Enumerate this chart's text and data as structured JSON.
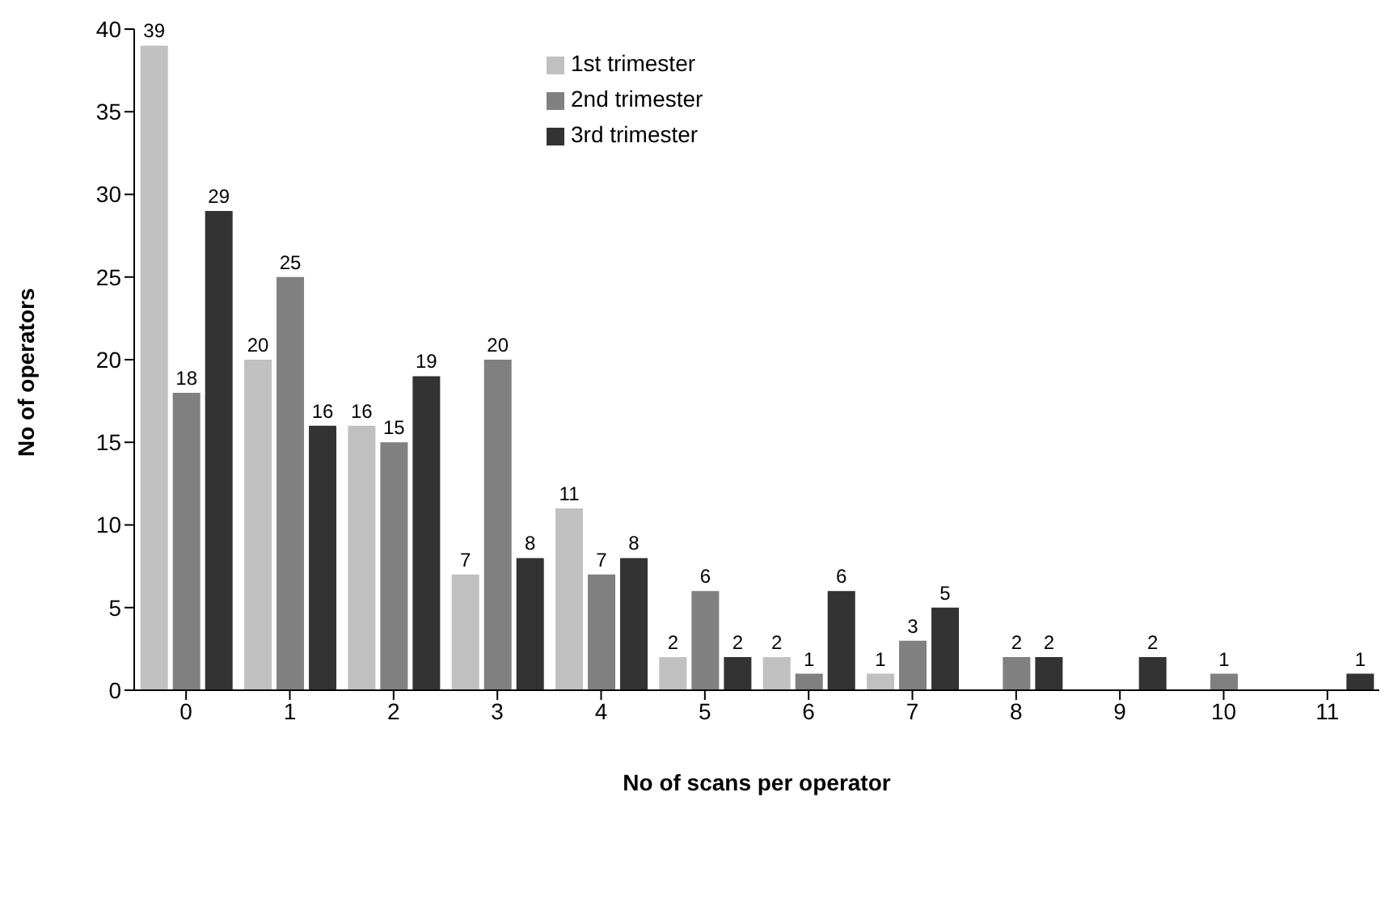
{
  "chart_data": {
    "type": "bar",
    "xlabel": "No of scans per operator",
    "ylabel": "No of operators",
    "categories": [
      "0",
      "1",
      "2",
      "3",
      "4",
      "5",
      "6",
      "7",
      "8",
      "9",
      "10",
      "11"
    ],
    "series": [
      {
        "name": "1st trimester",
        "color": "#c0c0c0",
        "values": [
          39,
          20,
          16,
          7,
          11,
          2,
          2,
          1,
          null,
          null,
          null,
          null
        ]
      },
      {
        "name": "2nd trimester",
        "color": "#808080",
        "values": [
          18,
          25,
          15,
          20,
          7,
          6,
          1,
          3,
          2,
          null,
          1,
          null
        ]
      },
      {
        "name": "3rd trimester",
        "color": "#333333",
        "values": [
          29,
          16,
          19,
          8,
          8,
          2,
          6,
          5,
          2,
          2,
          null,
          1
        ]
      }
    ],
    "ylim": [
      0,
      40
    ],
    "yticks": [
      0,
      5,
      10,
      15,
      20,
      25,
      30,
      35,
      40
    ],
    "grid": false,
    "legend": "top",
    "data_labels": true
  }
}
